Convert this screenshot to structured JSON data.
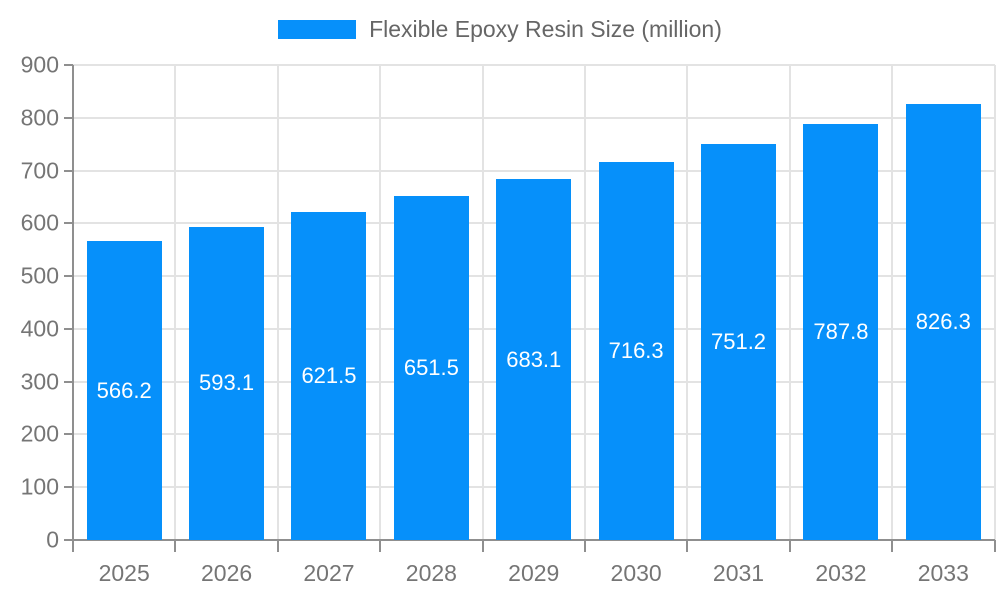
{
  "chart_data": {
    "type": "bar",
    "title": "Flexible Epoxy Resin Size (million)",
    "categories": [
      "2025",
      "2026",
      "2027",
      "2028",
      "2029",
      "2030",
      "2031",
      "2032",
      "2033"
    ],
    "values": [
      566.2,
      593.1,
      621.5,
      651.5,
      683.1,
      716.3,
      751.2,
      787.8,
      826.3
    ],
    "xlabel": "",
    "ylabel": "",
    "ylim": [
      0,
      900
    ],
    "ytick_interval": 100,
    "ytick_labels": [
      "0",
      "100",
      "200",
      "300",
      "400",
      "500",
      "600",
      "700",
      "800",
      "900"
    ],
    "grid": "on",
    "legend_position": "top",
    "legend_entries": [
      "Flexible Epoxy Resin Size (million)"
    ],
    "bar_color": "#0690FA",
    "bar_label_color": "#ffffff",
    "axis_text_color": "#757575",
    "legend_text_color": "#666666",
    "grid_color": "#e3e3e3",
    "axis_line_color": "#8f8f8f"
  }
}
